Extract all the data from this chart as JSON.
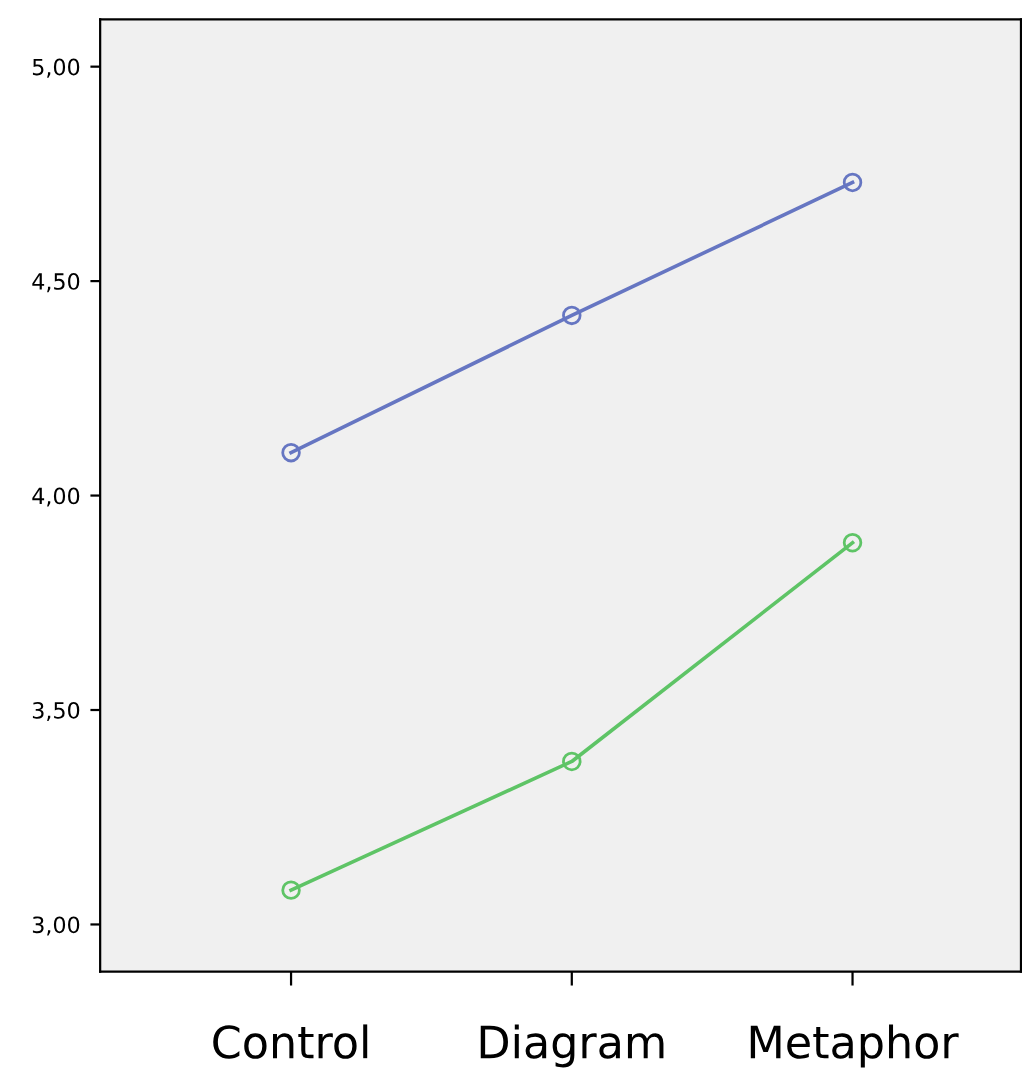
{
  "chart_data": {
    "type": "line",
    "categories": [
      "Control",
      "Diagram",
      "Metaphor"
    ],
    "series": [
      {
        "color": "#6676c2",
        "values": [
          4.1,
          4.42,
          4.73
        ]
      },
      {
        "color": "#5ec466",
        "values": [
          3.08,
          3.38,
          3.89
        ]
      }
    ],
    "ylim": [
      2.89,
      5.11
    ],
    "yticks": [
      {
        "value": 3,
        "label": "3,00"
      },
      {
        "value": 3.5,
        "label": "3,50"
      },
      {
        "value": 4,
        "label": "4,00"
      },
      {
        "value": 4.5,
        "label": "4,50"
      },
      {
        "value": 5,
        "label": "5,00"
      }
    ],
    "marker": "circle",
    "grid": false
  }
}
